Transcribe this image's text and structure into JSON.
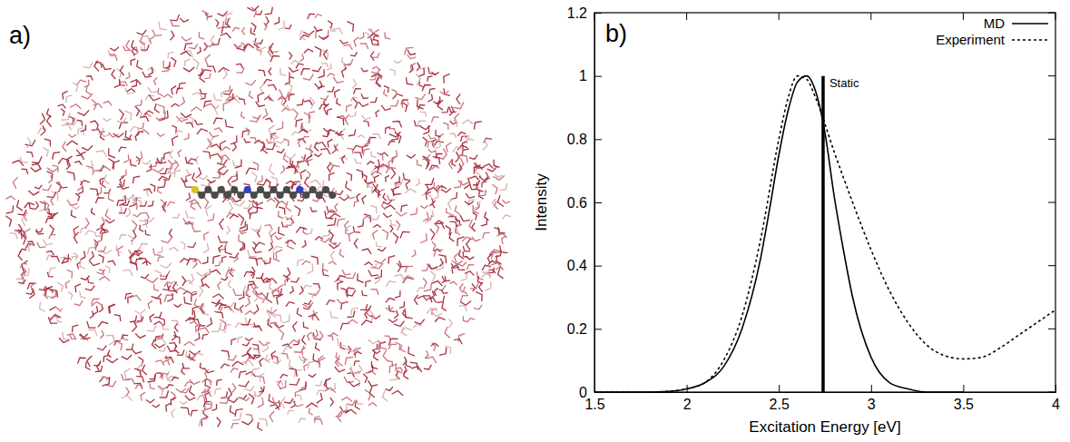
{
  "snapshot": {
    "label": "a)"
  },
  "chart_data": {
    "type": "line",
    "label": "b)",
    "x_label": "Excitation Energy [eV]",
    "y_label": "Intensity",
    "xlim": [
      1.5,
      4
    ],
    "ylim": [
      0,
      1.2
    ],
    "xticks": [
      1.5,
      2,
      2.5,
      3,
      3.5,
      4
    ],
    "yticks": [
      0,
      0.2,
      0.4,
      0.6,
      0.8,
      1,
      1.2
    ],
    "legend": "upper right",
    "grid": false,
    "series": [
      {
        "name": "MD",
        "type": "line",
        "line_style": "solid",
        "color": "#000000",
        "x": [
          1.5,
          1.6,
          1.7,
          1.8,
          1.9,
          2.0,
          2.1,
          2.2,
          2.3,
          2.4,
          2.45,
          2.5,
          2.55,
          2.6,
          2.65,
          2.7,
          2.75,
          2.8,
          2.85,
          2.9,
          3.0,
          3.1,
          3.2,
          3.3,
          3.4,
          3.5
        ],
        "values": [
          0,
          0,
          0,
          0,
          0.002,
          0.01,
          0.03,
          0.08,
          0.2,
          0.42,
          0.58,
          0.75,
          0.89,
          0.98,
          1.0,
          0.95,
          0.82,
          0.62,
          0.45,
          0.3,
          0.11,
          0.03,
          0.01,
          0,
          0,
          0
        ]
      },
      {
        "name": "Experiment",
        "type": "line",
        "line_style": "dotted",
        "color": "#000000",
        "x": [
          1.5,
          1.6,
          1.7,
          1.8,
          1.9,
          2.0,
          2.1,
          2.2,
          2.3,
          2.4,
          2.5,
          2.55,
          2.6,
          2.65,
          2.7,
          2.8,
          2.9,
          3.0,
          3.1,
          3.2,
          3.3,
          3.4,
          3.5,
          3.6,
          3.7,
          3.8,
          3.9,
          4.0
        ],
        "values": [
          0,
          0,
          0,
          0,
          0.002,
          0.01,
          0.03,
          0.1,
          0.24,
          0.48,
          0.8,
          0.93,
          1.0,
          0.99,
          0.93,
          0.76,
          0.6,
          0.45,
          0.32,
          0.22,
          0.15,
          0.115,
          0.105,
          0.11,
          0.14,
          0.18,
          0.22,
          0.26
        ]
      },
      {
        "name": "Static",
        "type": "stick",
        "color": "#000000",
        "x": [
          2.74
        ],
        "values": [
          1.0
        ]
      }
    ]
  }
}
